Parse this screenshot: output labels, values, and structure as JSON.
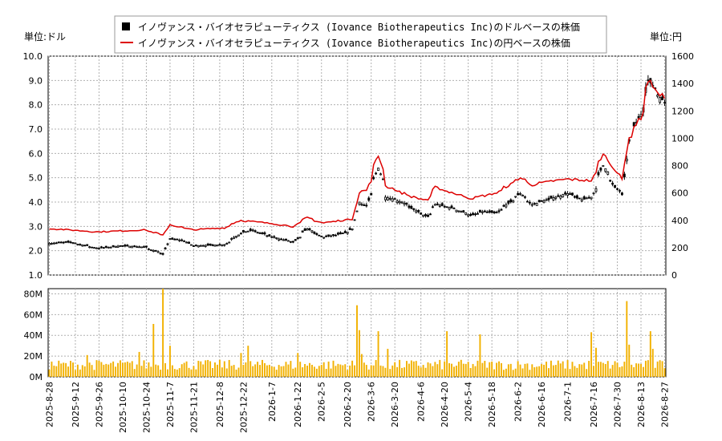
{
  "chart_data": [
    {
      "type": "candlestick-line",
      "legend": [
        {
          "label": "イノヴァンス・バイオセラピューティクス (Iovance Biotherapeutics Inc)のドルベースの株価",
          "color": "#000000",
          "marker": "square"
        },
        {
          "label": "イノヴァンス・バイオセラピューティクス (Iovance Biotherapeutics Inc)の円ベースの株価",
          "color": "#dd0000",
          "marker": "line"
        }
      ],
      "left_axis_unit": "単位:ドル",
      "right_axis_unit": "単位:円",
      "left_ylim": [
        1.0,
        10.0
      ],
      "right_ylim": [
        0,
        1600
      ],
      "left_ticks": [
        "1.0",
        "2.0",
        "3.0",
        "4.0",
        "5.0",
        "6.0",
        "7.0",
        "8.0",
        "9.0",
        "10.0"
      ],
      "right_ticks": [
        "0",
        "200",
        "400",
        "600",
        "800",
        "1000",
        "1200",
        "1400",
        "1600"
      ],
      "grid": true,
      "price_anchors": [
        [
          "2025-08-28",
          2.3
        ],
        [
          "2025-09-10",
          2.35
        ],
        [
          "2025-09-26",
          2.1
        ],
        [
          "2025-10-10",
          2.2
        ],
        [
          "2025-10-24",
          2.15
        ],
        [
          "2025-11-04",
          1.85
        ],
        [
          "2025-11-07",
          2.5
        ],
        [
          "2025-11-17",
          2.4
        ],
        [
          "2025-11-21",
          2.2
        ],
        [
          "2025-12-10",
          2.25
        ],
        [
          "2025-12-19",
          2.7
        ],
        [
          "2025-12-26",
          2.85
        ],
        [
          "2026-01-08",
          2.55
        ],
        [
          "2026-01-20",
          2.35
        ],
        [
          "2026-01-28",
          2.9
        ],
        [
          "2026-02-06",
          2.55
        ],
        [
          "2026-02-18",
          2.7
        ],
        [
          "2026-02-24",
          2.9
        ],
        [
          "2026-02-27",
          4.0
        ],
        [
          "2026-03-04",
          3.85
        ],
        [
          "2026-03-11",
          5.4
        ],
        [
          "2026-03-16",
          4.2
        ],
        [
          "2026-03-25",
          4.0
        ],
        [
          "2026-04-03",
          3.6
        ],
        [
          "2026-04-09",
          3.4
        ],
        [
          "2026-04-14",
          3.9
        ],
        [
          "2026-04-24",
          3.75
        ],
        [
          "2026-05-05",
          3.45
        ],
        [
          "2026-05-12",
          3.6
        ],
        [
          "2026-05-20",
          3.55
        ],
        [
          "2026-06-03",
          4.35
        ],
        [
          "2026-06-10",
          3.9
        ],
        [
          "2026-06-24",
          4.2
        ],
        [
          "2026-07-01",
          4.35
        ],
        [
          "2026-07-09",
          4.1
        ],
        [
          "2026-07-15",
          4.2
        ],
        [
          "2026-07-17",
          4.55
        ],
        [
          "2026-07-22",
          5.5
        ],
        [
          "2026-07-29",
          4.6
        ],
        [
          "2026-08-03",
          4.3
        ],
        [
          "2026-08-06",
          6.5
        ],
        [
          "2026-08-13",
          7.6
        ],
        [
          "2026-08-18",
          9.0
        ],
        [
          "2026-08-24",
          8.4
        ],
        [
          "2026-08-27",
          8.1
        ]
      ],
      "usd_gap": [
        "2026-08-07",
        "2026-08-07"
      ],
      "yen_anchors": [
        [
          "2025-08-28",
          340
        ],
        [
          "2025-09-26",
          315
        ],
        [
          "2025-10-24",
          330
        ],
        [
          "2025-11-04",
          290
        ],
        [
          "2025-11-07",
          370
        ],
        [
          "2025-11-21",
          330
        ],
        [
          "2025-12-10",
          345
        ],
        [
          "2025-12-19",
          400
        ],
        [
          "2026-01-08",
          375
        ],
        [
          "2026-01-20",
          355
        ],
        [
          "2026-01-28",
          420
        ],
        [
          "2026-02-06",
          380
        ],
        [
          "2026-02-24",
          410
        ],
        [
          "2026-02-27",
          600
        ],
        [
          "2026-03-04",
          620
        ],
        [
          "2026-03-11",
          870
        ],
        [
          "2026-03-16",
          650
        ],
        [
          "2026-03-25",
          600
        ],
        [
          "2026-04-03",
          560
        ],
        [
          "2026-04-09",
          550
        ],
        [
          "2026-04-14",
          640
        ],
        [
          "2026-04-24",
          600
        ],
        [
          "2026-05-05",
          560
        ],
        [
          "2026-05-20",
          600
        ],
        [
          "2026-06-03",
          710
        ],
        [
          "2026-06-10",
          660
        ],
        [
          "2026-06-24",
          690
        ],
        [
          "2026-07-01",
          700
        ],
        [
          "2026-07-15",
          690
        ],
        [
          "2026-07-22",
          880
        ],
        [
          "2026-07-29",
          770
        ],
        [
          "2026-08-03",
          700
        ],
        [
          "2026-08-06",
          1000
        ],
        [
          "2026-08-13",
          1150
        ],
        [
          "2026-08-18",
          1420
        ],
        [
          "2026-08-24",
          1320
        ],
        [
          "2026-08-27",
          1300
        ]
      ]
    },
    {
      "type": "bar",
      "ylim": [
        0,
        85
      ],
      "ytick_labels": [
        "0M",
        "20M",
        "40M",
        "60M",
        "80M"
      ],
      "ytick_values": [
        0,
        20,
        40,
        60,
        80
      ],
      "color": "#f2b100",
      "base_volume_m": 11,
      "volume_spikes_m": [
        [
          "2025-09-19",
          21
        ],
        [
          "2025-10-21",
          24
        ],
        [
          "2025-10-29",
          51
        ],
        [
          "2025-11-04",
          85
        ],
        [
          "2025-11-07",
          30
        ],
        [
          "2025-12-19",
          23
        ],
        [
          "2025-12-24",
          30
        ],
        [
          "2026-01-22",
          23
        ],
        [
          "2026-02-26",
          69
        ],
        [
          "2026-02-27",
          45
        ],
        [
          "2026-03-02",
          22
        ],
        [
          "2026-03-11",
          44
        ],
        [
          "2026-03-17",
          27
        ],
        [
          "2026-04-21",
          44
        ],
        [
          "2026-05-11",
          41
        ],
        [
          "2026-07-15",
          43
        ],
        [
          "2026-07-17",
          28
        ],
        [
          "2026-08-05",
          73
        ],
        [
          "2026-08-06",
          31
        ],
        [
          "2026-08-19",
          44
        ],
        [
          "2026-08-20",
          27
        ]
      ],
      "x_tick_labels": [
        "2025-8-28",
        "2025-9-12",
        "2025-9-26",
        "2025-10-10",
        "2025-10-24",
        "2025-11-7",
        "2025-11-21",
        "2025-12-8",
        "2025-12-22",
        "2026-1-7",
        "2026-1-22",
        "2026-2-5",
        "2026-2-20",
        "2026-3-6",
        "2026-3-20",
        "2026-4-6",
        "2026-4-20",
        "2026-5-4",
        "2026-5-18",
        "2026-6-2",
        "2026-6-16",
        "2026-7-1",
        "2026-7-16",
        "2026-7-30",
        "2026-8-13",
        "2026-8-27"
      ]
    }
  ]
}
